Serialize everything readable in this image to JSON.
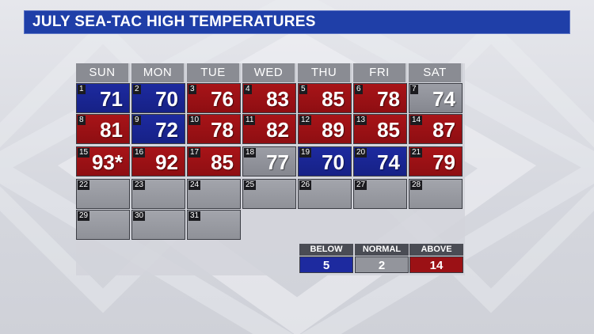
{
  "title": "JULY SEA-TAC HIGH TEMPERATURES",
  "days_of_week": [
    "SUN",
    "MON",
    "TUE",
    "WED",
    "THU",
    "FRI",
    "SAT"
  ],
  "colors": {
    "above": "#9b1115",
    "below": "#1d2a9f",
    "normal": "#93959c",
    "title_bar": "#1f3fa8"
  },
  "weeks": [
    [
      {
        "date": "1",
        "temp": "71",
        "category": "below"
      },
      {
        "date": "2",
        "temp": "70",
        "category": "below"
      },
      {
        "date": "3",
        "temp": "76",
        "category": "above"
      },
      {
        "date": "4",
        "temp": "83",
        "category": "above"
      },
      {
        "date": "5",
        "temp": "85",
        "category": "above"
      },
      {
        "date": "6",
        "temp": "78",
        "category": "above"
      },
      {
        "date": "7",
        "temp": "74",
        "category": "normal"
      }
    ],
    [
      {
        "date": "8",
        "temp": "81",
        "category": "above"
      },
      {
        "date": "9",
        "temp": "72",
        "category": "below"
      },
      {
        "date": "10",
        "temp": "78",
        "category": "above"
      },
      {
        "date": "11",
        "temp": "82",
        "category": "above"
      },
      {
        "date": "12",
        "temp": "89",
        "category": "above"
      },
      {
        "date": "13",
        "temp": "85",
        "category": "above"
      },
      {
        "date": "14",
        "temp": "87",
        "category": "above"
      }
    ],
    [
      {
        "date": "15",
        "temp": "93*",
        "category": "above"
      },
      {
        "date": "16",
        "temp": "92",
        "category": "above"
      },
      {
        "date": "17",
        "temp": "85",
        "category": "above"
      },
      {
        "date": "18",
        "temp": "77",
        "category": "normal"
      },
      {
        "date": "19",
        "temp": "70",
        "category": "below"
      },
      {
        "date": "20",
        "temp": "74",
        "category": "below"
      },
      {
        "date": "21",
        "temp": "79",
        "category": "above"
      }
    ],
    [
      {
        "date": "22",
        "temp": "",
        "category": "empty"
      },
      {
        "date": "23",
        "temp": "",
        "category": "empty"
      },
      {
        "date": "24",
        "temp": "",
        "category": "empty"
      },
      {
        "date": "25",
        "temp": "",
        "category": "empty"
      },
      {
        "date": "26",
        "temp": "",
        "category": "empty"
      },
      {
        "date": "27",
        "temp": "",
        "category": "empty"
      },
      {
        "date": "28",
        "temp": "",
        "category": "empty"
      }
    ],
    [
      {
        "date": "29",
        "temp": "",
        "category": "empty"
      },
      {
        "date": "30",
        "temp": "",
        "category": "empty"
      },
      {
        "date": "31",
        "temp": "",
        "category": "empty"
      }
    ]
  ],
  "legend": {
    "below": {
      "label": "BELOW",
      "count": "5"
    },
    "normal": {
      "label": "NORMAL",
      "count": "2"
    },
    "above": {
      "label": "ABOVE",
      "count": "14"
    }
  }
}
